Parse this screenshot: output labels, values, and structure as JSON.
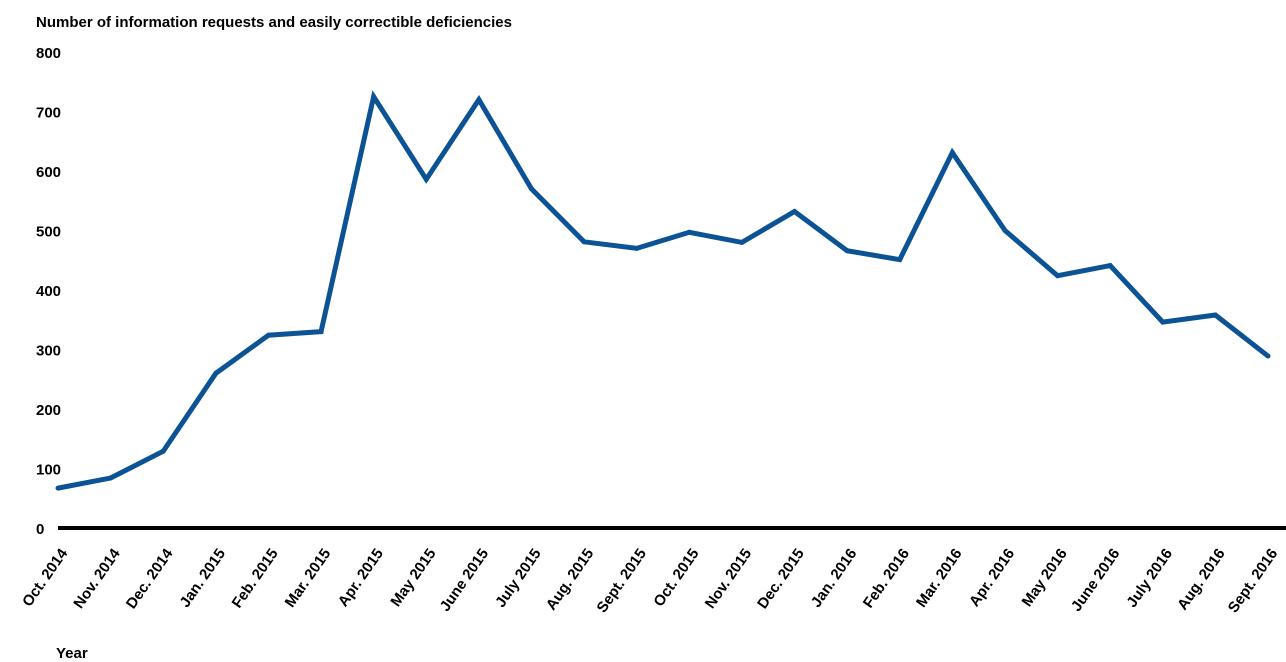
{
  "chart_data": {
    "type": "line",
    "ylabel": "Number of information requests and easily correctible deficiencies",
    "xlabel": "Year",
    "ylim": [
      0,
      800
    ],
    "yticks": [
      "0",
      "100",
      "200",
      "300",
      "400",
      "500",
      "600",
      "700",
      "800"
    ],
    "grid": false,
    "categories": [
      "Oct. 2014",
      "Nov. 2014",
      "Dec. 2014",
      "Jan. 2015",
      "Feb. 2015",
      "Mar. 2015",
      "Apr. 2015",
      "May 2015",
      "June 2015",
      "July 2015",
      "Aug. 2015",
      "Sept. 2015",
      "Oct. 2015",
      "Nov. 2015",
      "Dec. 2015",
      "Jan. 2016",
      "Feb. 2016",
      "Mar. 2016",
      "Apr. 2016",
      "May 2016",
      "June 2016",
      "July 2016",
      "Aug. 2016",
      "Sept. 2016"
    ],
    "series": [
      {
        "values": [
          67,
          84,
          129,
          260,
          324,
          330,
          725,
          586,
          720,
          570,
          481,
          470,
          497,
          480,
          532,
          466,
          451,
          631,
          500,
          424,
          441,
          346,
          358,
          289
        ]
      }
    ],
    "line_color": "#0b5394"
  }
}
